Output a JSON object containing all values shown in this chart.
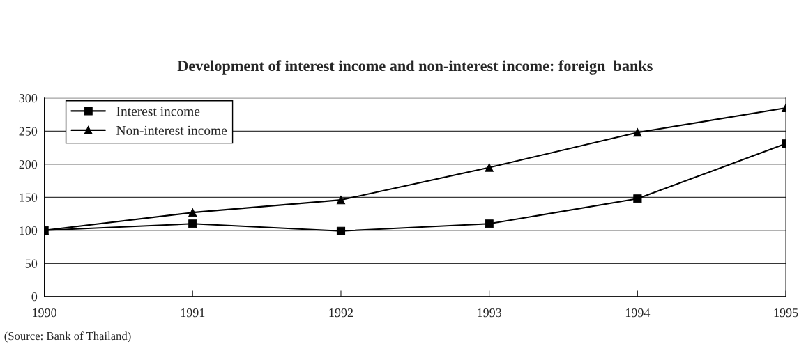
{
  "chart_data": {
    "type": "line",
    "title": "Development of interest income and non-interest income: foreign  banks",
    "x": [
      1990,
      1991,
      1992,
      1993,
      1994,
      1995
    ],
    "series": [
      {
        "name": "Interest income",
        "color": "#000000",
        "marker": "square",
        "values": [
          100,
          110,
          99,
          110,
          148,
          231
        ]
      },
      {
        "name": "Non-interest income",
        "color": "#000000",
        "marker": "triangle",
        "values": [
          100,
          127,
          146,
          195,
          248,
          285
        ]
      }
    ],
    "xlim": [
      1990,
      1995
    ],
    "xticks": [
      1990,
      1991,
      1992,
      1993,
      1994,
      1995
    ],
    "ylim": [
      0,
      300
    ],
    "yticks": [
      0,
      50,
      100,
      150,
      200,
      250,
      300
    ],
    "grid": "y",
    "legend": "top left",
    "line_style": "solid",
    "annotations": [
      "(Source: Bank of Thailand)"
    ]
  }
}
